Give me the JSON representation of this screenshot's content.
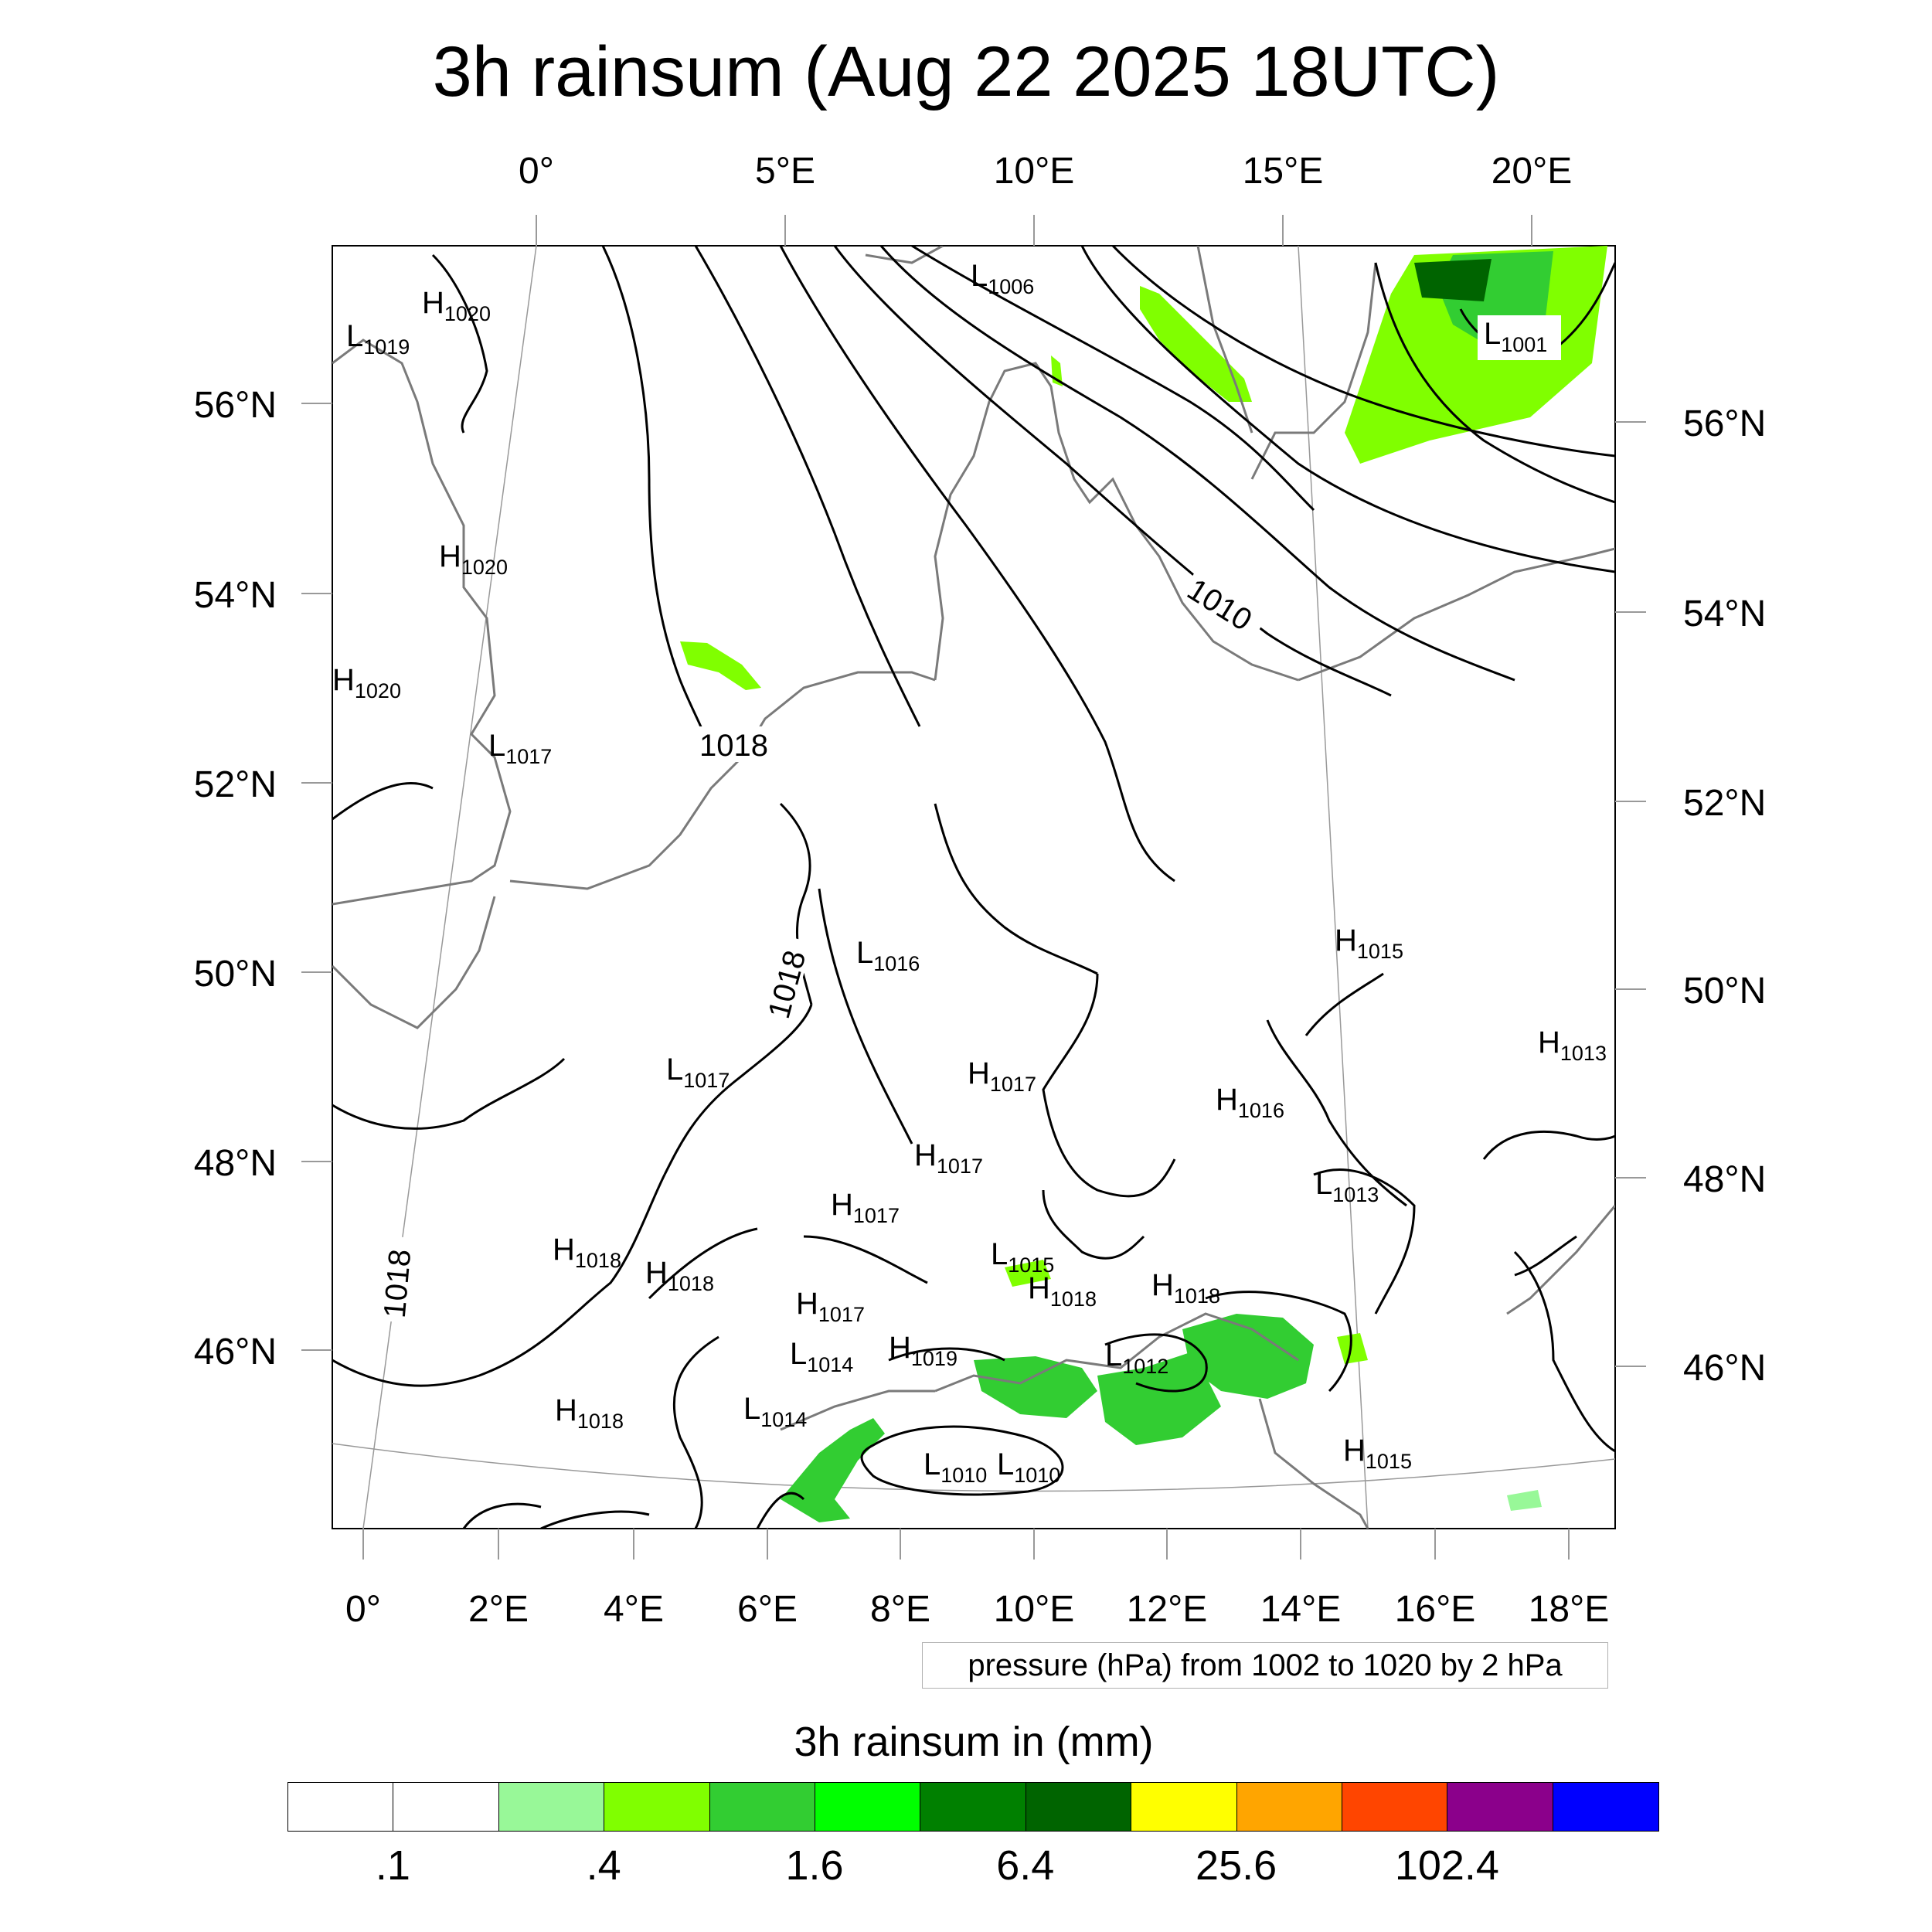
{
  "title": "3h rainsum (Aug 22 2025 18UTC)",
  "top_lon_labels": [
    "0°",
    "5°E",
    "10°E",
    "15°E",
    "20°E"
  ],
  "bottom_lon_labels": [
    "0°",
    "2°E",
    "4°E",
    "6°E",
    "8°E",
    "10°E",
    "12°E",
    "14°E",
    "16°E",
    "18°E"
  ],
  "left_lat_labels": [
    "56°N",
    "54°N",
    "52°N",
    "50°N",
    "48°N",
    "46°N"
  ],
  "right_lat_labels": [
    "56°N",
    "54°N",
    "52°N",
    "50°N",
    "48°N",
    "46°N"
  ],
  "isobar_labels": [
    "1018",
    "1018",
    "1018",
    "1010"
  ],
  "pressure_centers": [
    {
      "type": "L",
      "value": "1019"
    },
    {
      "type": "H",
      "value": "1020"
    },
    {
      "type": "L",
      "value": "1006"
    },
    {
      "type": "L",
      "value": "1001"
    },
    {
      "type": "H",
      "value": "1020"
    },
    {
      "type": "H",
      "value": "1020"
    },
    {
      "type": "L",
      "value": "1017"
    },
    {
      "type": "L",
      "value": "1016"
    },
    {
      "type": "H",
      "value": "1015"
    },
    {
      "type": "H",
      "value": "1013"
    },
    {
      "type": "L",
      "value": "1017"
    },
    {
      "type": "H",
      "value": "1017"
    },
    {
      "type": "H",
      "value": "1016"
    },
    {
      "type": "H",
      "value": "1017"
    },
    {
      "type": "L",
      "value": "1013"
    },
    {
      "type": "H",
      "value": "1017"
    },
    {
      "type": "H",
      "value": "1018"
    },
    {
      "type": "H",
      "value": "1018"
    },
    {
      "type": "L",
      "value": "1015"
    },
    {
      "type": "H",
      "value": "1018"
    },
    {
      "type": "H",
      "value": "1018"
    },
    {
      "type": "H",
      "value": "1017"
    },
    {
      "type": "L",
      "value": "1014"
    },
    {
      "type": "H",
      "value": "1019"
    },
    {
      "type": "L",
      "value": "1012"
    },
    {
      "type": "L",
      "value": "1014"
    },
    {
      "type": "H",
      "value": "1018"
    },
    {
      "type": "H",
      "value": "1015"
    },
    {
      "type": "L",
      "value": "1010"
    },
    {
      "type": "L",
      "value": "1010"
    }
  ],
  "pressure_note": "pressure (hPa) from 1002 to 1020 by 2 hPa",
  "colorbar": {
    "title": "3h rainsum in (mm)",
    "colors": [
      "#ffffff",
      "#ffffff",
      "#98f898",
      "#80ff00",
      "#32cd32",
      "#00ff00",
      "#008000",
      "#006400",
      "#ffff00",
      "#ffa500",
      "#ff4500",
      "#8b008b",
      "#0000ff"
    ],
    "tick_labels": [
      ".1",
      ".4",
      "1.6",
      "6.4",
      "25.6",
      "102.4"
    ]
  }
}
